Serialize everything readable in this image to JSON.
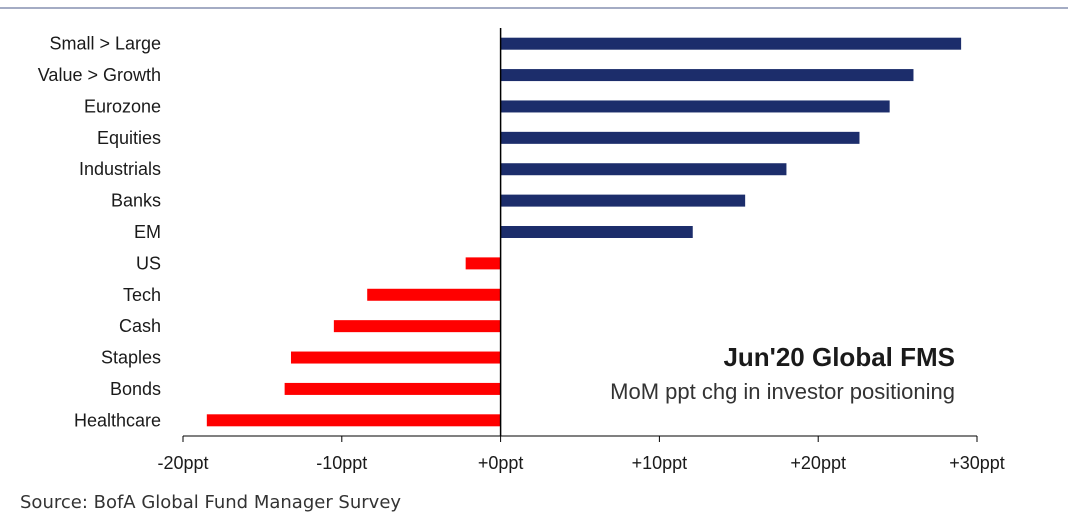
{
  "chart_data": {
    "type": "bar",
    "orientation": "horizontal",
    "title": "Jun'20 Global FMS",
    "subtitle": "MoM ppt chg in investor positioning",
    "categories": [
      "Small > Large",
      "Value > Growth",
      "Eurozone",
      "Equities",
      "Industrials",
      "Banks",
      "EM",
      "US",
      "Tech",
      "Cash",
      "Staples",
      "Bonds",
      "Healthcare"
    ],
    "values": [
      29,
      26,
      24.5,
      22.6,
      18,
      15.4,
      12.1,
      -2.2,
      -8.4,
      -10.5,
      -13.2,
      -13.6,
      -18.5
    ],
    "xlim": [
      -20,
      30
    ],
    "xticks": [
      -20,
      -10,
      0,
      10,
      20,
      30
    ],
    "xtick_labels": [
      "-20ppt",
      "-10ppt",
      "+0ppt",
      "+10ppt",
      "+20ppt",
      "+30ppt"
    ],
    "colors": {
      "positive": "#1c2d6b",
      "negative": "#ff0000",
      "axis": "#000000",
      "rule": "#4a5a8a"
    },
    "grid": false,
    "legend": "none"
  },
  "source": "Source: BofA Global Fund Manager Survey"
}
